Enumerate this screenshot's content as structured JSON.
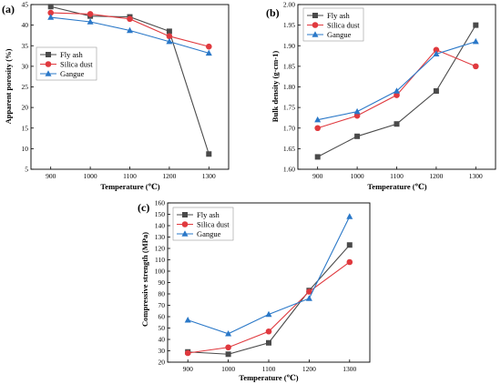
{
  "colors": {
    "fly_ash": "#4a4a4a",
    "silica_dust": "#e0393e",
    "gangue": "#2a78c8"
  },
  "chart_data": [
    {
      "panel_label": "(a)",
      "type": "line",
      "xlabel": "Temperature (℃)",
      "ylabel": "Apparent porosity (%)",
      "x": [
        900,
        1000,
        1100,
        1200,
        1300
      ],
      "xlim": [
        850,
        1350
      ],
      "ylim": [
        5,
        45
      ],
      "yticks": [
        5,
        10,
        15,
        20,
        25,
        30,
        35,
        40,
        45
      ],
      "ytick_decimals": 0,
      "legend_position": "center-left",
      "series": [
        {
          "name": "Fly ash",
          "marker": "square",
          "color": "#4a4a4a",
          "values": [
            44.5,
            42.2,
            42.0,
            38.5,
            8.7
          ]
        },
        {
          "name": "Silica dust",
          "marker": "circle",
          "color": "#e0393e",
          "values": [
            43.0,
            42.7,
            41.5,
            37.3,
            34.8
          ]
        },
        {
          "name": "Gangue",
          "marker": "triangle",
          "color": "#2a78c8",
          "values": [
            41.9,
            40.8,
            38.7,
            36.0,
            33.2
          ]
        }
      ]
    },
    {
      "panel_label": "(b)",
      "type": "line",
      "xlabel": "Temperature (℃)",
      "ylabel": "Bulk density (g·cm-1)",
      "x": [
        900,
        1000,
        1100,
        1200,
        1300
      ],
      "xlim": [
        850,
        1350
      ],
      "ylim": [
        1.6,
        2.0
      ],
      "yticks": [
        1.6,
        1.65,
        1.7,
        1.75,
        1.8,
        1.85,
        1.9,
        1.95,
        2.0
      ],
      "ytick_decimals": 2,
      "legend_position": "top-left",
      "series": [
        {
          "name": "Fly ash",
          "marker": "square",
          "color": "#4a4a4a",
          "values": [
            1.63,
            1.68,
            1.71,
            1.79,
            1.95
          ]
        },
        {
          "name": "Silica dust",
          "marker": "circle",
          "color": "#e0393e",
          "values": [
            1.7,
            1.73,
            1.78,
            1.89,
            1.85
          ]
        },
        {
          "name": "Gangue",
          "marker": "triangle",
          "color": "#2a78c8",
          "values": [
            1.72,
            1.74,
            1.79,
            1.88,
            1.91
          ]
        }
      ]
    },
    {
      "panel_label": "(c)",
      "type": "line",
      "xlabel": "Temperature (℃)",
      "ylabel": "Compressive strength (MPa)",
      "x": [
        900,
        1000,
        1100,
        1200,
        1300
      ],
      "xlim": [
        850,
        1350
      ],
      "ylim": [
        20,
        160
      ],
      "yticks": [
        20,
        30,
        40,
        50,
        60,
        70,
        80,
        90,
        100,
        110,
        120,
        130,
        140,
        150,
        160
      ],
      "ytick_decimals": 0,
      "legend_position": "top-left",
      "series": [
        {
          "name": "Fly ash",
          "marker": "square",
          "color": "#4a4a4a",
          "values": [
            29,
            27,
            37,
            83,
            123
          ]
        },
        {
          "name": "Silica dust",
          "marker": "circle",
          "color": "#e0393e",
          "values": [
            28,
            33,
            47,
            82,
            108
          ]
        },
        {
          "name": "Gangue",
          "marker": "triangle",
          "color": "#2a78c8",
          "values": [
            57,
            45,
            62,
            76,
            148
          ]
        }
      ]
    }
  ]
}
